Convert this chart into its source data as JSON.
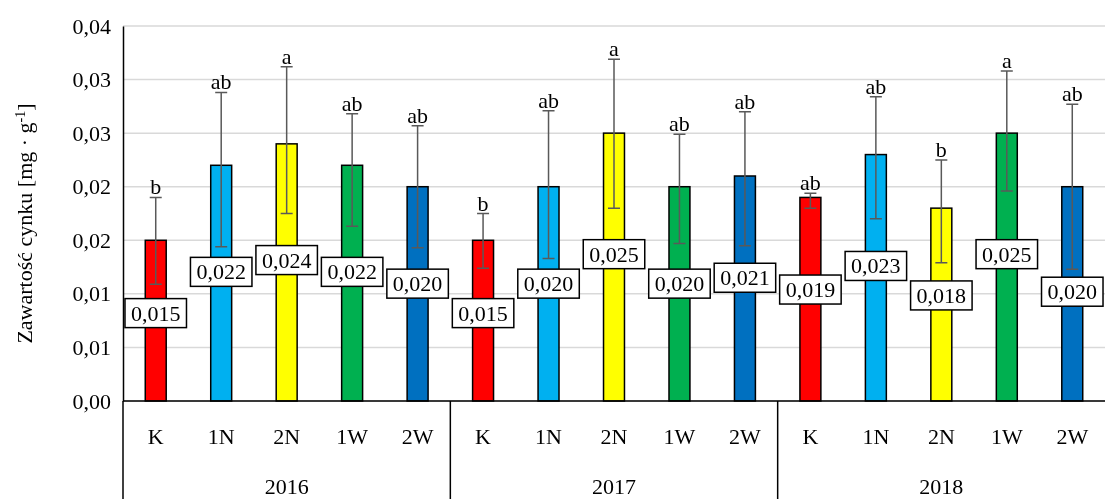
{
  "chart_data": {
    "type": "bar",
    "ylabel": "Zawartość cynku  [mg · g$^{-1}$]",
    "categories": [
      "K",
      "1N",
      "2N",
      "1W",
      "2W",
      "K",
      "1N",
      "2N",
      "1W",
      "2W",
      "K",
      "1N",
      "2N",
      "1W",
      "2W"
    ],
    "values": [
      0.015,
      0.022,
      0.024,
      0.022,
      0.02,
      0.015,
      0.02,
      0.025,
      0.02,
      0.021,
      0.019,
      0.023,
      0.018,
      0.025,
      0.02
    ],
    "colors": [
      "#ff0000",
      "#00b0f0",
      "#ffff00",
      "#00b050",
      "#0070c0",
      "#ff0000",
      "#00b0f0",
      "#ffff00",
      "#00b050",
      "#0070c0",
      "#ff0000",
      "#00b0f0",
      "#ffff00",
      "#00b050",
      "#0070c0"
    ],
    "errors": [
      [
        0.0109,
        0.019
      ],
      [
        0.0144,
        0.0288
      ],
      [
        0.0175,
        0.0312
      ],
      [
        0.0163,
        0.0268
      ],
      [
        0.0143,
        0.0257
      ],
      [
        0.0124,
        0.0175
      ],
      [
        0.0133,
        0.0271
      ],
      [
        0.018,
        0.0319
      ],
      [
        0.0147,
        0.0249
      ],
      [
        0.0145,
        0.027
      ],
      [
        0.018,
        0.0194
      ],
      [
        0.017,
        0.0284
      ],
      [
        0.0129,
        0.0225
      ],
      [
        0.0196,
        0.0308
      ],
      [
        0.0123,
        0.0277
      ]
    ],
    "value_labels": [
      "0,015",
      "0,022",
      "0,024",
      "0,022",
      "0,020",
      "0,015",
      "0,020",
      "0,025",
      "0,020",
      "0,021",
      "0,019",
      "0,023",
      "0,018",
      "0,025",
      "0,020"
    ],
    "annotations": [
      "b",
      "ab",
      "a",
      "ab",
      "ab",
      "b",
      "ab",
      "a",
      "ab",
      "ab",
      "ab",
      "ab",
      "b",
      "a",
      "ab",
      "2016",
      "2017",
      "2018"
    ],
    "ylim": [
      0,
      0.035
    ],
    "yticks": [
      {
        "value": 0,
        "label": "0,00"
      },
      {
        "value": 0.005,
        "label": "0,01"
      },
      {
        "value": 0.01,
        "label": "0,01"
      },
      {
        "value": 0.015,
        "label": "0,02"
      },
      {
        "value": 0.02,
        "label": "0,02"
      },
      {
        "value": 0.025,
        "label": "0,03"
      },
      {
        "value": 0.03,
        "label": "0,03"
      },
      {
        "value": 0.035,
        "label": "0,04"
      }
    ],
    "grid": "y"
  }
}
